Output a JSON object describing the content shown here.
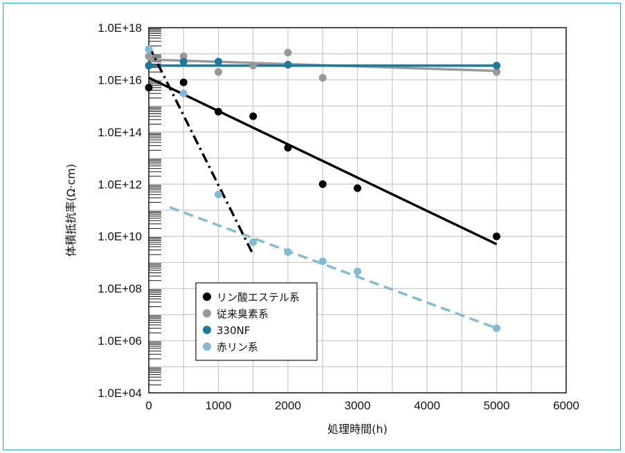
{
  "chart_data": {
    "type": "scatter",
    "xlabel": "処理時間(h)",
    "ylabel": "体積抵抗率(Ω·cm)",
    "xlim": [
      0,
      6000
    ],
    "ylim": [
      10000.0,
      1e+18
    ],
    "yscale": "log",
    "grid": true,
    "x_ticks": [
      "0",
      "1000",
      "2000",
      "3000",
      "4000",
      "5000",
      "6000"
    ],
    "y_ticks": [
      "1.0E+04",
      "1.0E+06",
      "1.0E+08",
      "1.0E+10",
      "1.0E+12",
      "1.0E+14",
      "1.0E+16",
      "1.0E+18"
    ],
    "legend": {
      "position": "bottom-left"
    },
    "series": [
      {
        "name": "リン酸エステル系",
        "color": "#000000",
        "points": [
          [
            0,
            5000000000000000.0
          ],
          [
            500,
            8000000000000000.0
          ],
          [
            1000,
            600000000000000.0
          ],
          [
            1500,
            400000000000000.0
          ],
          [
            2000,
            25000000000000.0
          ],
          [
            2500,
            1000000000000.0
          ],
          [
            3000,
            700000000000.0
          ],
          [
            5000,
            10000000000.0
          ]
        ],
        "fit": {
          "style": "solid",
          "from": [
            0,
            1.2e+16
          ],
          "to": [
            5000,
            5000000000.0
          ]
        }
      },
      {
        "name": "従来臭素系",
        "color": "#999999",
        "points": [
          [
            0,
            8e+16
          ],
          [
            500,
            8e+16
          ],
          [
            1000,
            2e+16
          ],
          [
            1500,
            3.5e+16
          ],
          [
            2000,
            1.1e+17
          ],
          [
            2500,
            1.2e+16
          ],
          [
            5000,
            2e+16
          ]
        ],
        "fit": {
          "style": "solid",
          "from": [
            0,
            6e+16
          ],
          "to": [
            5000,
            2.2e+16
          ]
        }
      },
      {
        "name": "330NF",
        "color": "#1a7a9e",
        "points": [
          [
            0,
            3.5e+16
          ],
          [
            500,
            5e+16
          ],
          [
            1000,
            5e+16
          ],
          [
            2000,
            3.8e+16
          ],
          [
            5000,
            3.5e+16
          ]
        ],
        "fit": {
          "style": "solid",
          "from": [
            0,
            3.5e+16
          ],
          "to": [
            5000,
            3.5e+16
          ]
        }
      },
      {
        "name": "赤リン系",
        "color": "#7fbcd5",
        "points": [
          [
            0,
            1.5e+17
          ],
          [
            500,
            3000000000000000.0
          ],
          [
            1000,
            400000000000.0
          ],
          [
            1500,
            6000000000.0
          ],
          [
            2000,
            2500000000.0
          ],
          [
            2500,
            1100000000.0
          ],
          [
            3000,
            450000000.0
          ],
          [
            5000,
            3000000.0
          ]
        ],
        "fit": {
          "style": "dashed",
          "from": [
            300,
            130000000000.0
          ],
          "to": [
            5000,
            3000000.0
          ]
        }
      }
    ],
    "extra_lines": [
      {
        "style": "dash-dot",
        "color": "#000000",
        "from": [
          0,
          2e+17
        ],
        "to": [
          1500,
          2000000000.0
        ]
      }
    ]
  }
}
